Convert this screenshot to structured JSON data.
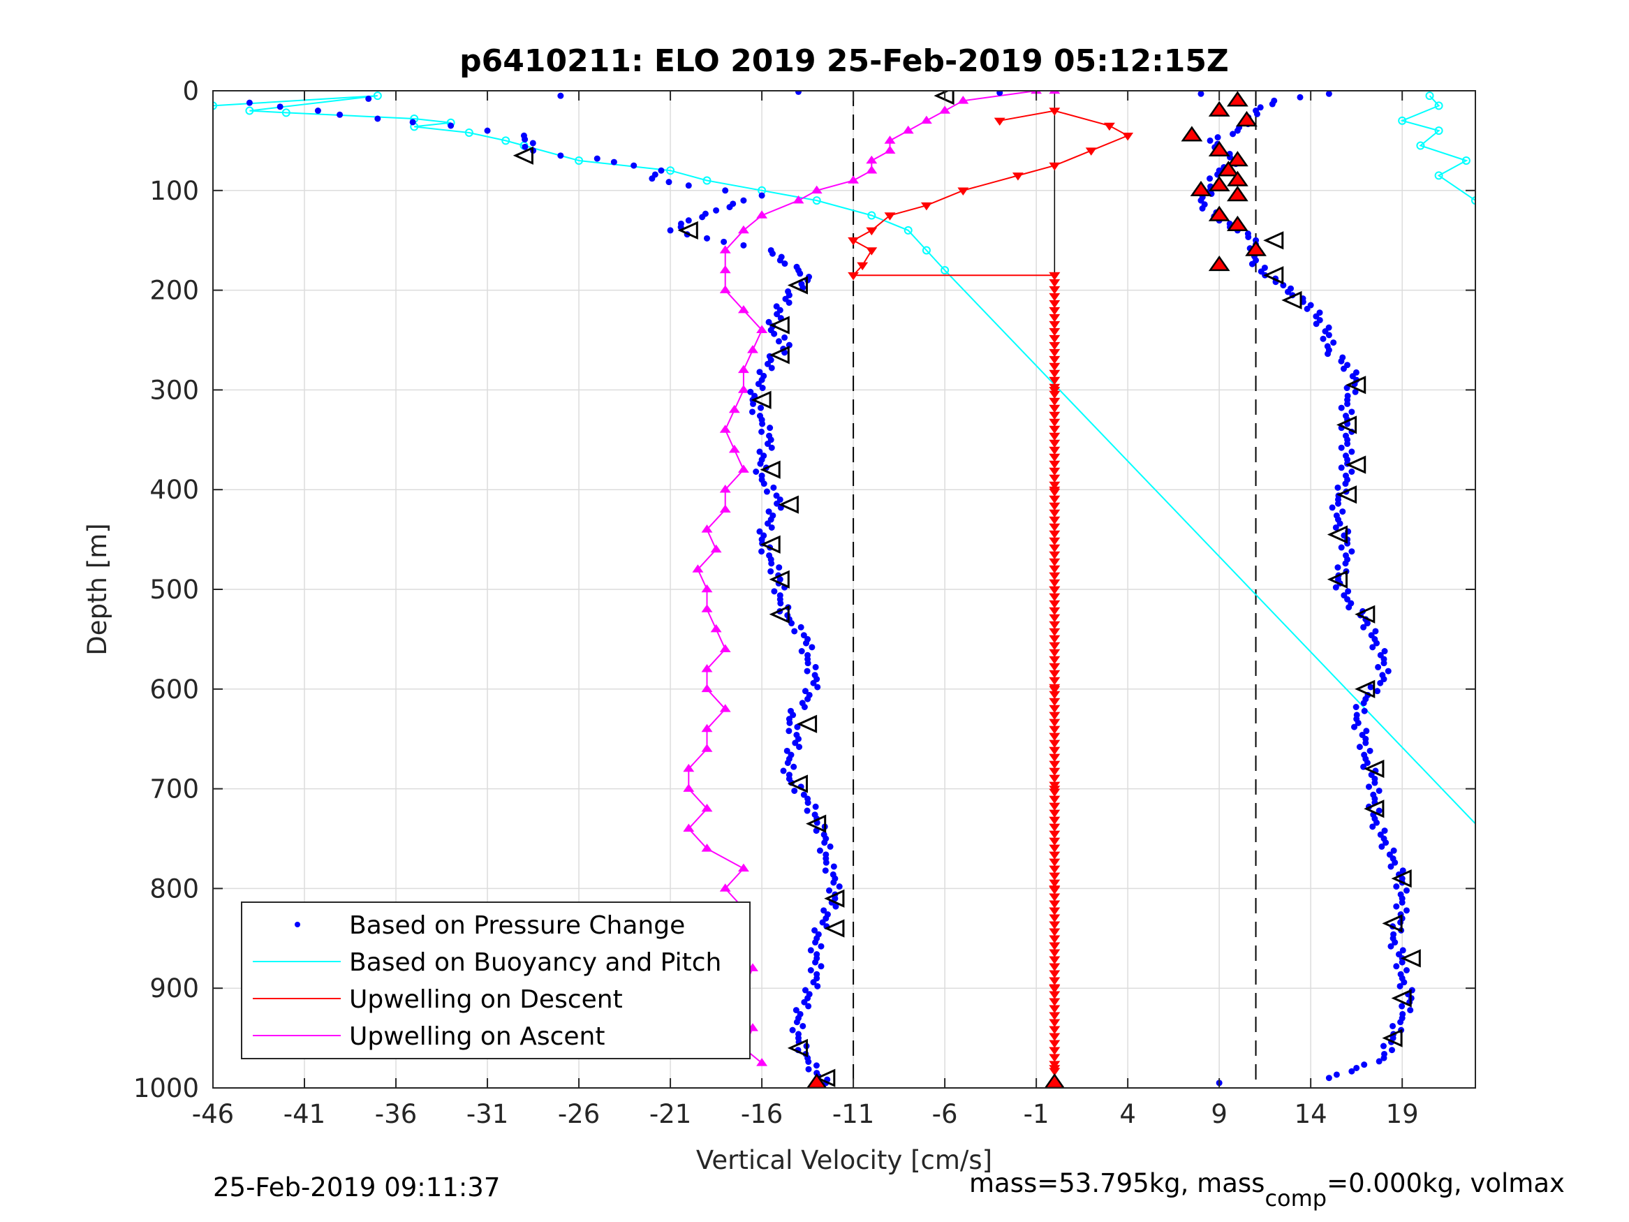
{
  "chart_data": {
    "type": "scatter",
    "title": "p6410211: ELO 2019 25-Feb-2019 05:12:15Z",
    "xlabel": "Vertical Velocity [cm/s]",
    "ylabel": "Depth [m]",
    "xlim": [
      -46,
      23
    ],
    "ylim": [
      0,
      1000
    ],
    "y_reversed": true,
    "grid": true,
    "xticks": [
      -46,
      -41,
      -36,
      -31,
      -26,
      -21,
      -16,
      -11,
      -6,
      -1,
      4,
      9,
      14,
      19
    ],
    "yticks": [
      0,
      100,
      200,
      300,
      400,
      500,
      600,
      700,
      800,
      900,
      1000
    ],
    "reference_lines": [
      -11,
      11
    ],
    "legend": {
      "placement": "bottom-left",
      "entries": [
        "Based on Pressure Change",
        "Based on Buoyancy and Pitch",
        "Upwelling on Descent",
        "Upwelling on Ascent"
      ]
    },
    "series": [
      {
        "name": "Based on Pressure Change",
        "color": "#0000ff",
        "marker": "dot",
        "descent": [
          [
            -27,
            5
          ],
          [
            -37.5,
            8
          ],
          [
            -44,
            12
          ],
          [
            -37,
            28
          ],
          [
            -33,
            35
          ],
          [
            -31,
            40
          ],
          [
            -29,
            45
          ],
          [
            -28.5,
            60
          ],
          [
            -27,
            65
          ],
          [
            -25,
            68
          ],
          [
            -23,
            75
          ],
          [
            -21.5,
            80
          ],
          [
            -22,
            88
          ],
          [
            -20,
            95
          ],
          [
            -18,
            100
          ],
          [
            -16,
            105
          ],
          [
            -17,
            110
          ],
          [
            -18.5,
            120
          ],
          [
            -20,
            130
          ],
          [
            -21,
            140
          ],
          [
            -19,
            148
          ],
          [
            -17,
            155
          ],
          [
            -15.5,
            160
          ],
          [
            -15,
            170
          ],
          [
            -14,
            180
          ],
          [
            -13.5,
            190
          ],
          [
            -14.5,
            205
          ],
          [
            -15,
            220
          ],
          [
            -15.5,
            240
          ],
          [
            -14.5,
            255
          ],
          [
            -15.5,
            270
          ],
          [
            -16,
            290
          ],
          [
            -16.5,
            310
          ],
          [
            -16,
            330
          ],
          [
            -15.5,
            350
          ],
          [
            -16,
            370
          ],
          [
            -16,
            390
          ],
          [
            -15,
            410
          ],
          [
            -15.5,
            430
          ],
          [
            -16,
            450
          ],
          [
            -15.5,
            470
          ],
          [
            -15,
            490
          ],
          [
            -15,
            510
          ],
          [
            -14.5,
            530
          ],
          [
            -13.5,
            550
          ],
          [
            -13.5,
            570
          ],
          [
            -13,
            590
          ],
          [
            -13.5,
            610
          ],
          [
            -14.5,
            630
          ],
          [
            -14,
            650
          ],
          [
            -14.5,
            670
          ],
          [
            -14.5,
            690
          ],
          [
            -13.5,
            710
          ],
          [
            -13,
            730
          ],
          [
            -12.5,
            750
          ],
          [
            -12.5,
            770
          ],
          [
            -12,
            790
          ],
          [
            -12,
            810
          ],
          [
            -12.5,
            830
          ],
          [
            -13,
            850
          ],
          [
            -13,
            870
          ],
          [
            -13,
            890
          ],
          [
            -13.5,
            910
          ],
          [
            -14,
            930
          ],
          [
            -14,
            950
          ],
          [
            -13.5,
            970
          ],
          [
            -13,
            985
          ],
          [
            -12.5,
            995
          ]
        ],
        "ascent": [
          [
            9,
            995
          ],
          [
            15,
            990
          ],
          [
            16.5,
            980
          ],
          [
            18,
            970
          ],
          [
            18.5,
            950
          ],
          [
            19,
            930
          ],
          [
            19.5,
            910
          ],
          [
            19,
            890
          ],
          [
            19,
            870
          ],
          [
            18.5,
            850
          ],
          [
            19,
            830
          ],
          [
            19,
            810
          ],
          [
            19,
            790
          ],
          [
            18.5,
            770
          ],
          [
            18,
            750
          ],
          [
            17.5,
            730
          ],
          [
            17.5,
            710
          ],
          [
            17.5,
            690
          ],
          [
            17,
            670
          ],
          [
            17,
            650
          ],
          [
            16.5,
            630
          ],
          [
            17,
            610
          ],
          [
            18,
            590
          ],
          [
            18,
            570
          ],
          [
            17.5,
            550
          ],
          [
            17,
            530
          ],
          [
            16,
            510
          ],
          [
            15.5,
            490
          ],
          [
            16,
            470
          ],
          [
            16,
            450
          ],
          [
            15.5,
            430
          ],
          [
            15.5,
            410
          ],
          [
            16,
            390
          ],
          [
            16,
            370
          ],
          [
            16,
            350
          ],
          [
            16,
            330
          ],
          [
            16,
            310
          ],
          [
            16.5,
            290
          ],
          [
            16,
            275
          ],
          [
            15,
            260
          ],
          [
            15,
            245
          ],
          [
            14.5,
            230
          ],
          [
            14,
            215
          ],
          [
            13,
            205
          ],
          [
            12.5,
            195
          ],
          [
            11.5,
            185
          ],
          [
            11,
            170
          ],
          [
            11,
            150
          ],
          [
            10,
            140
          ],
          [
            9,
            130
          ],
          [
            8,
            110
          ],
          [
            8.5,
            100
          ],
          [
            9,
            80
          ],
          [
            10,
            70
          ],
          [
            9,
            60
          ],
          [
            8.5,
            50
          ],
          [
            10,
            40
          ],
          [
            10.5,
            30
          ],
          [
            11,
            20
          ],
          [
            12,
            10
          ],
          [
            15,
            3
          ],
          [
            8,
            3
          ],
          [
            -3,
            2
          ],
          [
            -14,
            1
          ]
        ]
      },
      {
        "name": "Based on Buoyancy and Pitch",
        "color": "#00ffff",
        "marker": "circle",
        "descent": [
          [
            -46,
            15
          ],
          [
            -37,
            5
          ],
          [
            -44,
            20
          ],
          [
            -42,
            22
          ],
          [
            -35,
            28
          ],
          [
            -33,
            32
          ],
          [
            -35,
            36
          ],
          [
            -32,
            42
          ],
          [
            -30,
            50
          ],
          [
            -29,
            55
          ],
          [
            -26,
            70
          ],
          [
            -21,
            80
          ],
          [
            -19,
            90
          ],
          [
            -16,
            100
          ],
          [
            -13,
            110
          ],
          [
            -10,
            125
          ],
          [
            -8,
            140
          ],
          [
            -7,
            160
          ],
          [
            -6,
            180
          ]
        ],
        "ascent": [
          [
            20.5,
            5
          ],
          [
            21,
            15
          ],
          [
            19,
            30
          ],
          [
            21,
            40
          ],
          [
            20,
            55
          ],
          [
            22.5,
            70
          ],
          [
            21,
            85
          ],
          [
            23,
            110
          ]
        ],
        "model_line": [
          [
            -6,
            180
          ],
          [
            23,
            735
          ]
        ]
      },
      {
        "name": "Upwelling on Descent",
        "color": "#ff0000",
        "marker": "triangle-down",
        "values": [
          [
            -3,
            30
          ],
          [
            0,
            20
          ],
          [
            3,
            35
          ],
          [
            4,
            45
          ],
          [
            2,
            60
          ],
          [
            0,
            75
          ],
          [
            -2,
            85
          ],
          [
            -5,
            100
          ],
          [
            -7,
            115
          ],
          [
            -9,
            125
          ],
          [
            -10,
            140
          ],
          [
            -11,
            150
          ],
          [
            -10,
            160
          ],
          [
            -10.5,
            175
          ],
          [
            -11,
            185
          ],
          [
            0,
            185
          ],
          [
            0,
            300
          ],
          [
            0,
            400
          ],
          [
            0,
            500
          ],
          [
            0,
            600
          ],
          [
            0,
            700
          ],
          [
            0,
            800
          ],
          [
            0,
            900
          ],
          [
            0,
            980
          ]
        ]
      },
      {
        "name": "Upwelling on Ascent",
        "color": "#ff00ff",
        "marker": "triangle-up",
        "values": [
          [
            -16,
            975
          ],
          [
            -17,
            960
          ],
          [
            -16.5,
            940
          ],
          [
            -18,
            920
          ],
          [
            -17,
            900
          ],
          [
            -16.5,
            880
          ],
          [
            -18,
            860
          ],
          [
            -17,
            840
          ],
          [
            -17,
            820
          ],
          [
            -18,
            800
          ],
          [
            -17,
            780
          ],
          [
            -19,
            760
          ],
          [
            -20,
            740
          ],
          [
            -19,
            720
          ],
          [
            -20,
            700
          ],
          [
            -20,
            680
          ],
          [
            -19,
            660
          ],
          [
            -19,
            640
          ],
          [
            -18,
            620
          ],
          [
            -19,
            600
          ],
          [
            -19,
            580
          ],
          [
            -18,
            560
          ],
          [
            -18.5,
            540
          ],
          [
            -19,
            520
          ],
          [
            -19,
            500
          ],
          [
            -19.5,
            480
          ],
          [
            -18.5,
            460
          ],
          [
            -19,
            440
          ],
          [
            -18,
            420
          ],
          [
            -18,
            400
          ],
          [
            -17,
            380
          ],
          [
            -17.5,
            360
          ],
          [
            -18,
            340
          ],
          [
            -17.5,
            320
          ],
          [
            -17,
            300
          ],
          [
            -17,
            280
          ],
          [
            -16.5,
            260
          ],
          [
            -16,
            240
          ],
          [
            -17,
            220
          ],
          [
            -18,
            200
          ],
          [
            -18,
            180
          ],
          [
            -18,
            160
          ],
          [
            -17,
            140
          ],
          [
            -16,
            125
          ],
          [
            -14,
            110
          ],
          [
            -13,
            100
          ],
          [
            -11,
            90
          ],
          [
            -10,
            80
          ],
          [
            -10,
            70
          ],
          [
            -9,
            60
          ],
          [
            -9,
            50
          ],
          [
            -8,
            40
          ],
          [
            -7,
            30
          ],
          [
            -6,
            20
          ],
          [
            -5,
            10
          ],
          [
            -1,
            0
          ],
          [
            0,
            0
          ]
        ]
      }
    ],
    "turning_markers": {
      "descent_open_triangles": [
        [
          -6,
          5
        ],
        [
          -29,
          65
        ],
        [
          -20,
          140
        ],
        [
          -14,
          195
        ],
        [
          -15,
          235
        ],
        [
          -15,
          265
        ],
        [
          -16,
          310
        ],
        [
          -15.5,
          380
        ],
        [
          -14.5,
          415
        ],
        [
          -15.5,
          455
        ],
        [
          -15,
          490
        ],
        [
          -15,
          525
        ],
        [
          -13.5,
          635
        ],
        [
          -14,
          695
        ],
        [
          -13,
          735
        ],
        [
          -12,
          810
        ],
        [
          -12,
          840
        ],
        [
          -14,
          960
        ],
        [
          -12.5,
          990
        ]
      ],
      "ascent_open_triangles": [
        [
          12,
          150
        ],
        [
          12,
          185
        ],
        [
          13,
          210
        ],
        [
          16.5,
          295
        ],
        [
          16,
          335
        ],
        [
          16.5,
          375
        ],
        [
          16,
          405
        ],
        [
          15.5,
          445
        ],
        [
          15.5,
          490
        ],
        [
          17,
          525
        ],
        [
          17,
          600
        ],
        [
          17.5,
          680
        ],
        [
          17.5,
          720
        ],
        [
          19,
          790
        ],
        [
          18.5,
          835
        ],
        [
          19.5,
          870
        ],
        [
          19,
          910
        ],
        [
          18.5,
          950
        ]
      ],
      "red_filled_triangles": [
        [
          10,
          10
        ],
        [
          9,
          20
        ],
        [
          10.5,
          30
        ],
        [
          7.5,
          45
        ],
        [
          9,
          60
        ],
        [
          10,
          70
        ],
        [
          9.5,
          80
        ],
        [
          10,
          90
        ],
        [
          9,
          95
        ],
        [
          8,
          100
        ],
        [
          10,
          105
        ],
        [
          9,
          125
        ],
        [
          10,
          135
        ],
        [
          11,
          160
        ],
        [
          9,
          175
        ],
        [
          -13,
          995
        ],
        [
          0,
          995
        ]
      ]
    }
  },
  "footer": {
    "timestamp": "25-Feb-2019 09:11:37",
    "mass_text": "mass=53.795kg, mass",
    "comp_sub": "comp",
    "mass_tail": "=0.000kg, volmax"
  }
}
